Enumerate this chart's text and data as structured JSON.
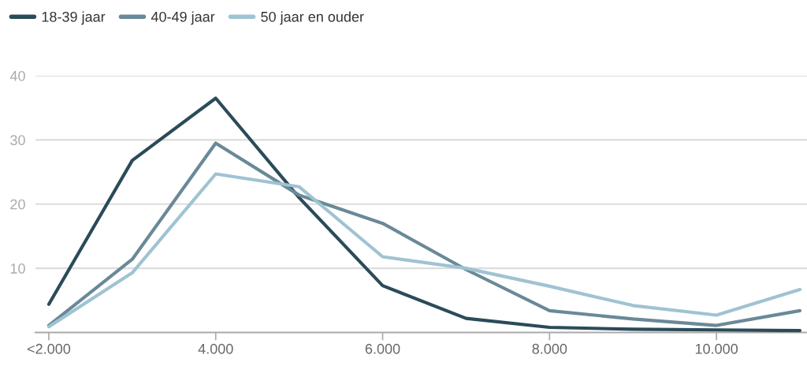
{
  "chart_data": {
    "type": "line",
    "categories": [
      "<2.000",
      null,
      "4.000",
      null,
      "6.000",
      null,
      "8.000",
      null,
      "10.000",
      null
    ],
    "series": [
      {
        "name": "18-39 jaar",
        "color": "#2b4b59",
        "values": [
          4.4,
          26.8,
          36.5,
          21.0,
          7.3,
          2.2,
          0.8,
          0.5,
          0.4,
          0.3
        ]
      },
      {
        "name": "40-49 jaar",
        "color": "#6a8998",
        "values": [
          1.1,
          11.4,
          29.5,
          21.4,
          17.0,
          9.8,
          3.4,
          2.1,
          1.1,
          3.4
        ]
      },
      {
        "name": "50 jaar en ouder",
        "color": "#9fc3d2",
        "values": [
          0.9,
          9.3,
          24.7,
          22.7,
          11.8,
          10.0,
          7.2,
          4.2,
          2.7,
          6.7
        ]
      }
    ],
    "ylim": [
      0,
      40
    ],
    "yticks": [
      10,
      20,
      30,
      40
    ],
    "grid": "y",
    "legend": "top left",
    "line_style": "solid"
  }
}
